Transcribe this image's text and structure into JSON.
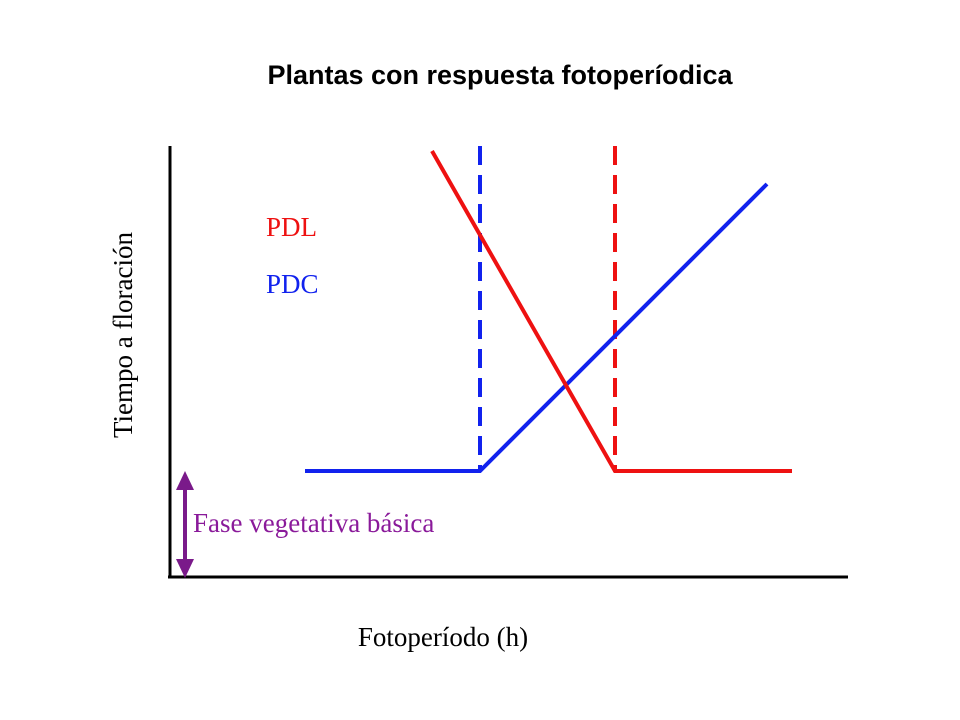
{
  "title": "Plantas con respuesta fotoperíodica",
  "axes": {
    "xlabel": "Fotoperíodo (h)",
    "ylabel": "Tiempo a floración"
  },
  "legend": {
    "pdl": {
      "label": "PDL",
      "color": "#ee1111"
    },
    "pdc": {
      "label": "PDC",
      "color": "#1122ee"
    }
  },
  "annotation": {
    "label": "Fase vegetativa básica",
    "color": "#8a1a9a",
    "arrow_color": "#7a1a8a"
  },
  "colors": {
    "axis": "#000000",
    "pdl_line": "#ee1111",
    "pdc_line": "#1122ee"
  },
  "curves": {
    "pdc": {
      "shape": "flat then rising",
      "threshold": "critical photoperiod (blue dashed line)"
    },
    "pdl": {
      "shape": "falling then flat",
      "threshold": "critical photoperiod (red dashed line)"
    }
  }
}
